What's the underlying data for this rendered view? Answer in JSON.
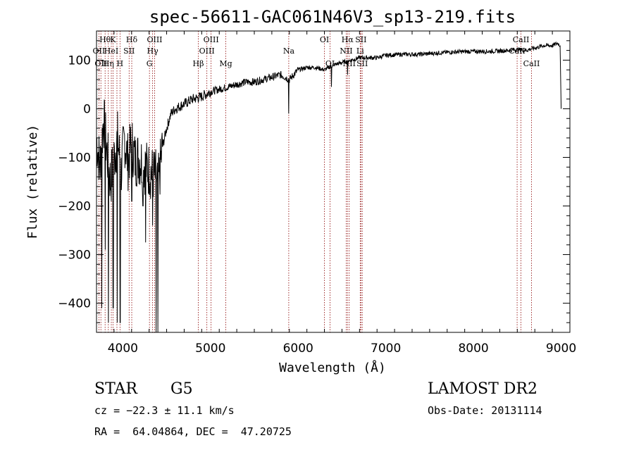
{
  "chart_data": {
    "type": "line",
    "title": "spec-56611-GAC061N46V3_sp13-219.fits",
    "xlabel": "Wavelength (Å)",
    "ylabel": "Flux (relative)",
    "xlim": [
      3700,
      9100
    ],
    "ylim": [
      -460,
      160
    ],
    "x_ticks": [
      4000,
      5000,
      6000,
      7000,
      8000,
      9000
    ],
    "y_ticks": [
      -400,
      -300,
      -200,
      -100,
      0,
      100
    ],
    "series": [
      {
        "color": "#000000",
        "x": [
          3700,
          3740,
          3780,
          3820,
          3860,
          3900,
          3940,
          3980,
          4020,
          4060,
          4100,
          4140,
          4180,
          4220,
          4260,
          4300,
          4340,
          4380,
          4410,
          4450,
          4500,
          4550,
          4600,
          4700,
          4800,
          4900,
          5000,
          5100,
          5200,
          5300,
          5400,
          5500,
          5600,
          5700,
          5800,
          5900,
          6000,
          6100,
          6200,
          6300,
          6400,
          6500,
          6600,
          6700,
          6800,
          6900,
          7000,
          7200,
          7400,
          7600,
          7800,
          8000,
          8200,
          8400,
          8500,
          8600,
          8700,
          8800,
          8900,
          8960,
          8990,
          9000
        ],
        "y": [
          -60,
          -120,
          -20,
          -90,
          -150,
          -100,
          -60,
          -130,
          -60,
          -110,
          -70,
          -105,
          -100,
          -110,
          -120,
          -125,
          -135,
          -140,
          -150,
          -80,
          -40,
          -10,
          0,
          10,
          20,
          25,
          35,
          40,
          45,
          50,
          55,
          55,
          60,
          65,
          70,
          60,
          80,
          85,
          85,
          80,
          90,
          95,
          100,
          105,
          105,
          105,
          110,
          112,
          112,
          115,
          117,
          118,
          118,
          120,
          122,
          120,
          125,
          130,
          130,
          135,
          130,
          0
        ]
      }
    ],
    "absorption_dips": [
      {
        "x": 3760,
        "y": -410
      },
      {
        "x": 3800,
        "y": -290
      },
      {
        "x": 3835,
        "y": -440
      },
      {
        "x": 3890,
        "y": -410
      },
      {
        "x": 3935,
        "y": -440
      },
      {
        "x": 3970,
        "y": -440
      },
      {
        "x": 4102,
        "y": -190
      },
      {
        "x": 4230,
        "y": -200
      },
      {
        "x": 4260,
        "y": -275
      },
      {
        "x": 4341,
        "y": -240
      },
      {
        "x": 4380,
        "y": -460
      },
      {
        "x": 4400,
        "y": -460
      },
      {
        "x": 5893,
        "y": -10
      },
      {
        "x": 6380,
        "y": 45
      },
      {
        "x": 6563,
        "y": 70
      }
    ],
    "lines": [
      {
        "x": 3727,
        "labels": [
          "OII"
        ],
        "row": 1
      },
      {
        "x": 3750,
        "labels": [
          "OII"
        ],
        "row": 2
      },
      {
        "x": 3798,
        "labels": [
          "Hθ"
        ],
        "row": 0
      },
      {
        "x": 3835,
        "labels": [
          "Hη"
        ],
        "row": 2
      },
      {
        "x": 3869,
        "labels": [
          "HeI"
        ],
        "row": 1
      },
      {
        "x": 3889,
        "labels": [
          "K"
        ],
        "row": 0
      },
      {
        "x": 3933,
        "labels": [],
        "row": 0
      },
      {
        "x": 3968,
        "labels": [
          "H"
        ],
        "row": 2
      },
      {
        "x": 4072,
        "labels": [
          "SII"
        ],
        "row": 1
      },
      {
        "x": 4102,
        "labels": [
          "Hδ"
        ],
        "row": 0
      },
      {
        "x": 4304,
        "labels": [
          "G"
        ],
        "row": 2
      },
      {
        "x": 4340,
        "labels": [
          "Hγ"
        ],
        "row": 1
      },
      {
        "x": 4363,
        "labels": [
          "OIII"
        ],
        "row": 0
      },
      {
        "x": 4861,
        "labels": [
          "Hβ"
        ],
        "row": 2
      },
      {
        "x": 4959,
        "labels": [
          "OIII"
        ],
        "row": 1
      },
      {
        "x": 5007,
        "labels": [
          "OIII"
        ],
        "row": 0
      },
      {
        "x": 5175,
        "labels": [
          "Mg"
        ],
        "row": 2
      },
      {
        "x": 5893,
        "labels": [
          "Na"
        ],
        "row": 1
      },
      {
        "x": 6300,
        "labels": [
          "OI"
        ],
        "row": 0
      },
      {
        "x": 6364,
        "labels": [
          "OI"
        ],
        "row": 2
      },
      {
        "x": 6548,
        "labels": [
          "NII"
        ],
        "row": 1
      },
      {
        "x": 6563,
        "labels": [
          "Hα"
        ],
        "row": 0
      },
      {
        "x": 6583,
        "labels": [
          "NII"
        ],
        "row": 2
      },
      {
        "x": 6708,
        "labels": [
          "Li"
        ],
        "row": 1
      },
      {
        "x": 6716,
        "labels": [
          "SII"
        ],
        "row": 0
      },
      {
        "x": 6731,
        "labels": [
          "SII"
        ],
        "row": 2
      },
      {
        "x": 8498,
        "labels": [
          "CaII"
        ],
        "row": 1
      },
      {
        "x": 8542,
        "labels": [
          "CaII"
        ],
        "row": 0
      },
      {
        "x": 8662,
        "labels": [
          "CaII"
        ],
        "row": 2
      }
    ],
    "line_color": "#8b0000",
    "grid": false,
    "legend": "none"
  },
  "info": {
    "object_class": "STAR",
    "subclass": "G5",
    "cz": "cz = −22.3 ± 11.1 km/s",
    "coords": "RA =  64.04864, DEC =  47.20725",
    "survey": "LAMOST DR2",
    "obs_date": "Obs-Date: 20131114"
  }
}
